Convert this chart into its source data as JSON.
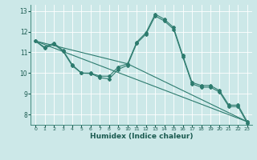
{
  "xlabel": "Humidex (Indice chaleur)",
  "bg_color": "#cce8e8",
  "line_color": "#2d7b6e",
  "grid_color": "#b0d8d8",
  "xlim": [
    -0.5,
    23.5
  ],
  "ylim": [
    7.5,
    13.3
  ],
  "yticks": [
    8,
    9,
    10,
    11,
    12,
    13
  ],
  "xticks": [
    0,
    1,
    2,
    3,
    4,
    5,
    6,
    7,
    8,
    9,
    10,
    11,
    12,
    13,
    14,
    15,
    16,
    17,
    18,
    19,
    20,
    21,
    22,
    23
  ],
  "line1_x": [
    0,
    1,
    2,
    3,
    4,
    5,
    6,
    7,
    8,
    9,
    10,
    11,
    12,
    13,
    14,
    15,
    16,
    17,
    18,
    19,
    20,
    21,
    22,
    23
  ],
  "line1_y": [
    11.55,
    11.25,
    11.45,
    11.1,
    10.4,
    10.0,
    10.0,
    9.85,
    9.85,
    10.3,
    10.45,
    11.5,
    11.95,
    12.85,
    12.6,
    12.2,
    10.85,
    9.55,
    9.4,
    9.4,
    9.15,
    8.45,
    8.45,
    7.65
  ],
  "line2_x": [
    0,
    1,
    2,
    3,
    4,
    5,
    6,
    7,
    8,
    9,
    10,
    11,
    12,
    13,
    14,
    15,
    16,
    17,
    18,
    19,
    20,
    21,
    22,
    23
  ],
  "line2_y": [
    11.55,
    11.2,
    11.4,
    11.05,
    10.35,
    10.0,
    9.98,
    9.78,
    9.72,
    10.18,
    10.38,
    11.44,
    11.88,
    12.76,
    12.52,
    12.12,
    10.78,
    9.48,
    9.32,
    9.32,
    9.08,
    8.38,
    8.38,
    7.58
  ],
  "line3_x": [
    0,
    23
  ],
  "line3_y": [
    11.55,
    7.65
  ],
  "line4_x": [
    0,
    10,
    23
  ],
  "line4_y": [
    11.55,
    10.45,
    7.65
  ]
}
